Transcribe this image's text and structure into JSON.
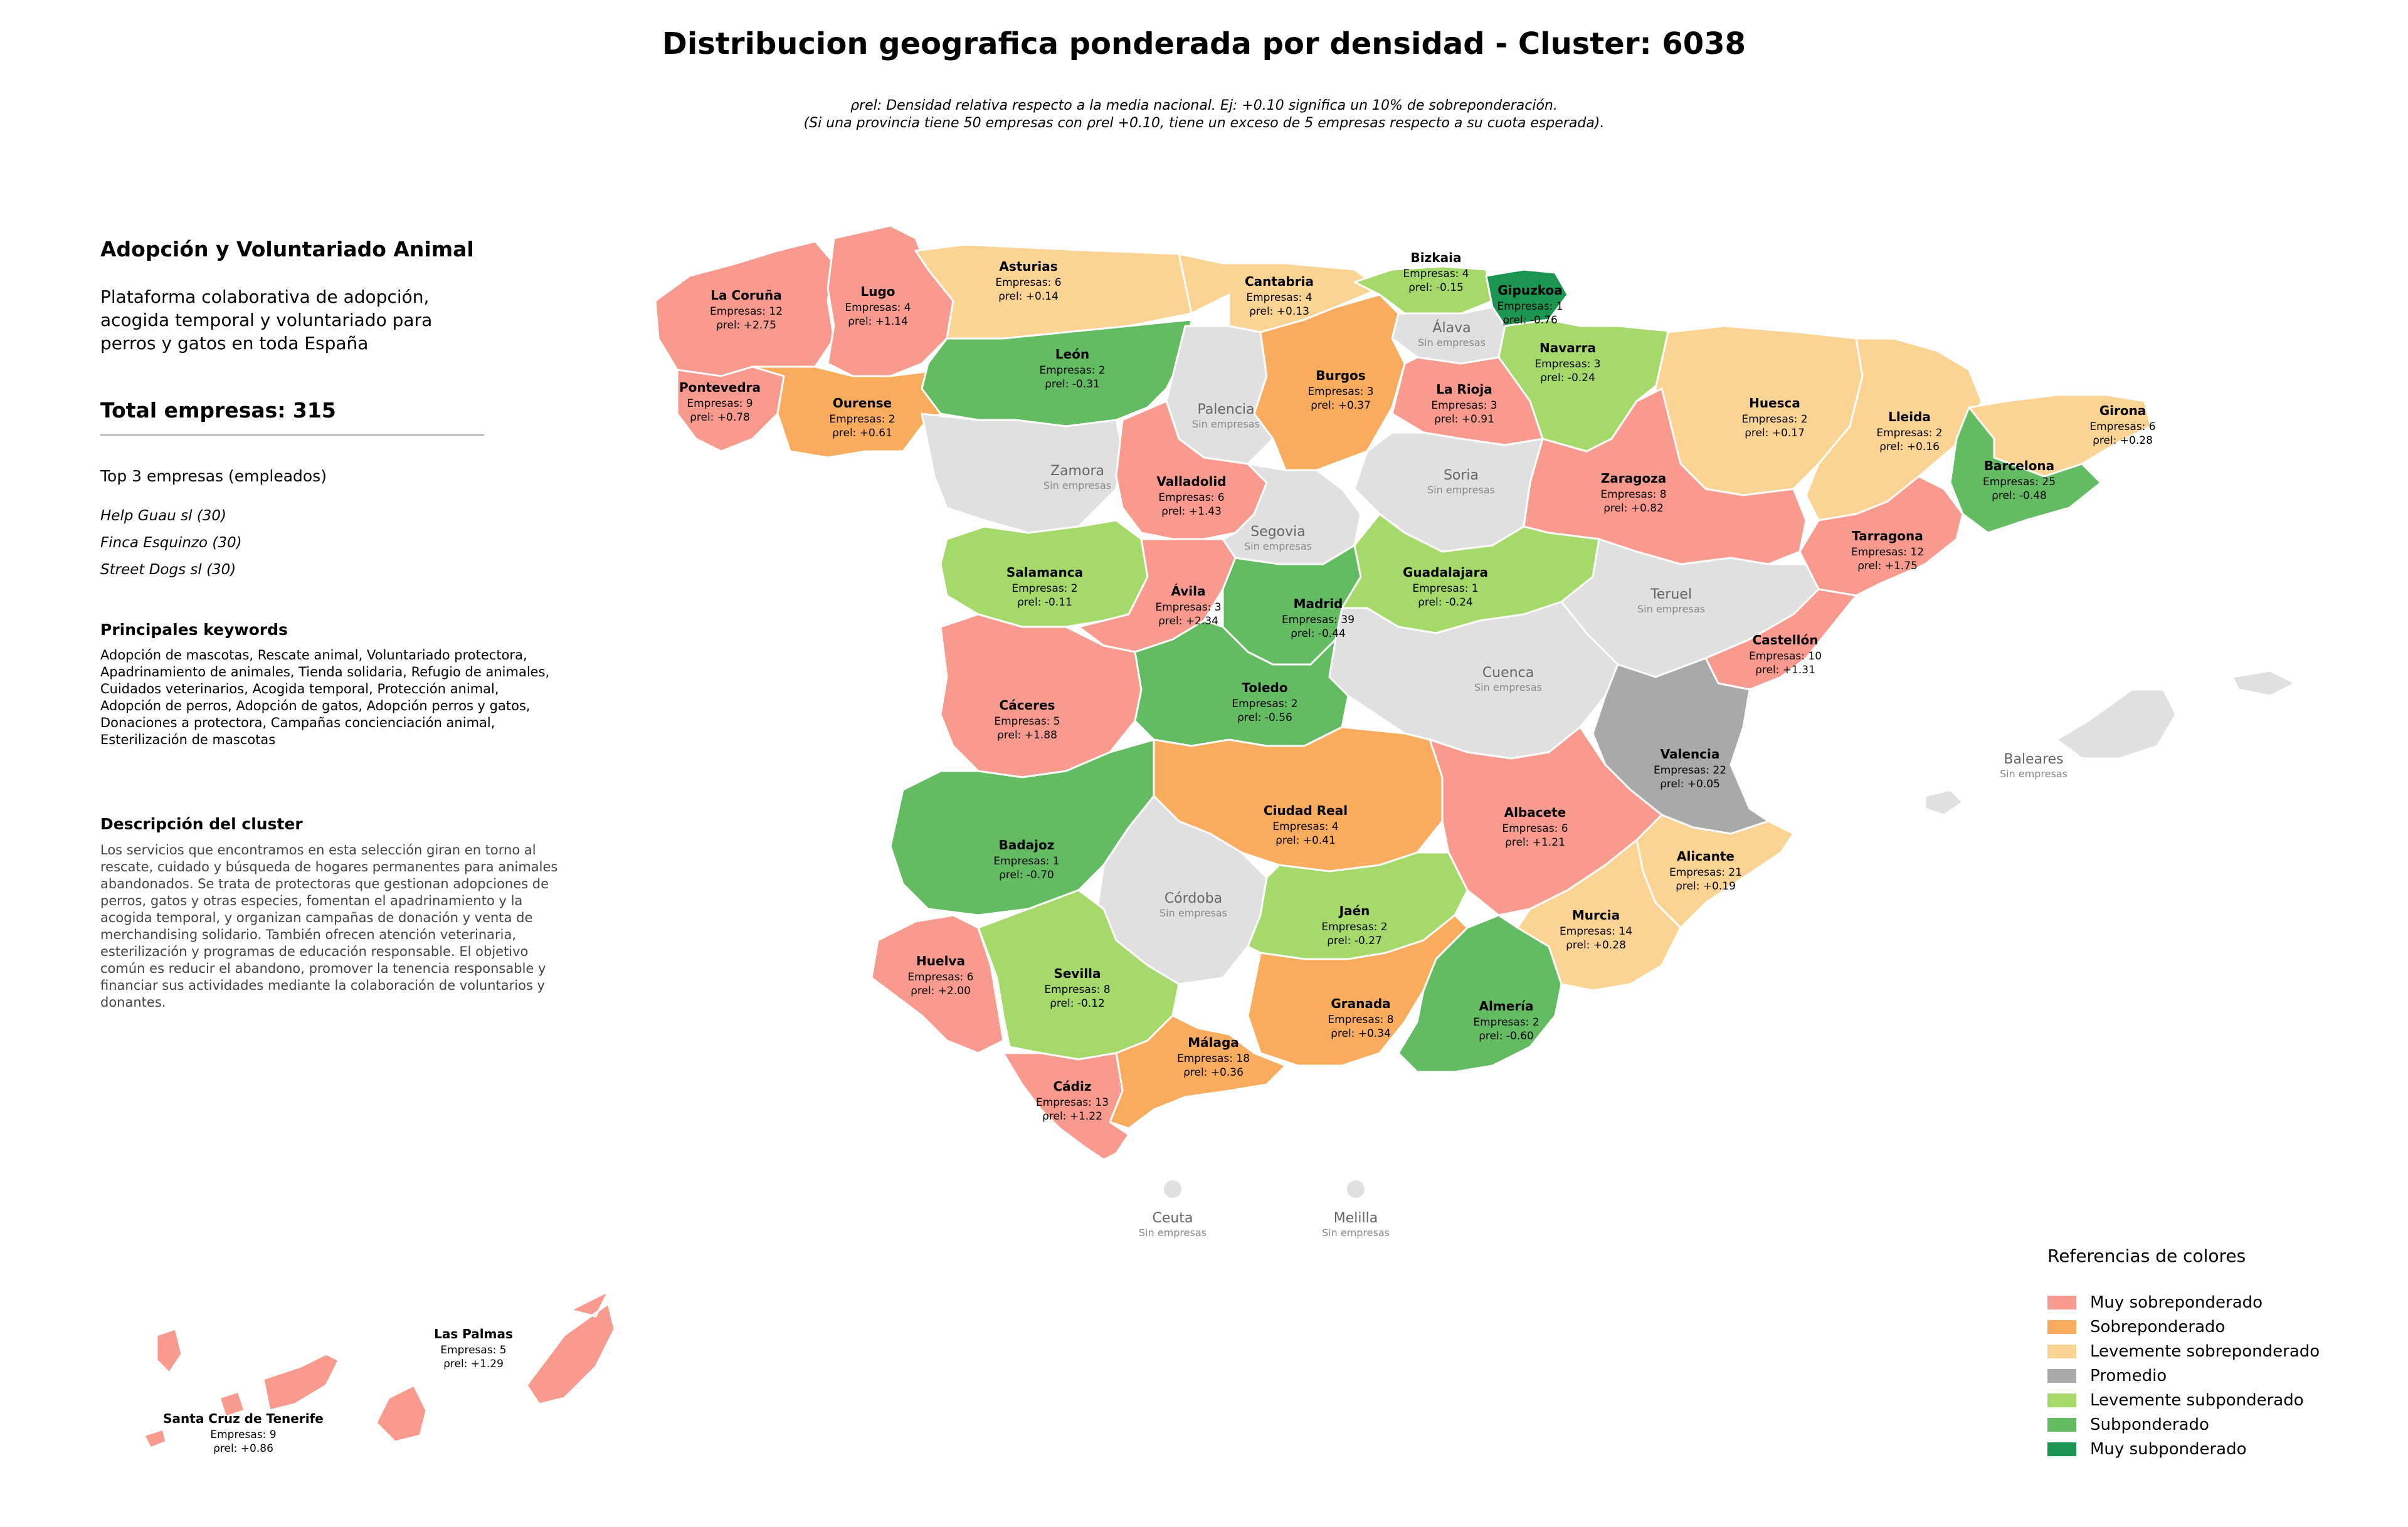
{
  "title": "Distribucion geografica ponderada por densidad - Cluster: 6038",
  "subtitle_line1": "ρrel: Densidad relativa respecto a la media nacional. Ej: +0.10 significa un 10% de sobreponderación.",
  "subtitle_line2": "(Si una provincia tiene 50 empresas con ρrel +0.10, tiene un exceso de 5 empresas respecto a su cuota esperada).",
  "sidebar": {
    "cluster_title": "Adopción y Voluntariado Animal",
    "cluster_description": "Plataforma colaborativa de adopción, acogida temporal y voluntariado para perros y gatos en toda España",
    "total_label": "Total empresas: 315",
    "top_heading": "Top 3 empresas (empleados)",
    "top_companies": [
      "Help Guau sl (30)",
      "Finca Esquinzo (30)",
      "Street Dogs sl (30)"
    ],
    "keywords_heading": "Principales keywords",
    "keywords": "Adopción de mascotas, Rescate animal, Voluntariado protectora, Apadrinamiento de animales, Tienda solidaria, Refugio de animales, Cuidados veterinarios, Acogida temporal, Protección animal, Adopción de perros, Adopción de gatos, Adopción perros y gatos, Donaciones a protectora, Campañas concienciación animal, Esterilización de mascotas",
    "description_heading": "Descripción del cluster",
    "description_body": "Los servicios que encontramos en esta selección giran en torno al rescate, cuidado y búsqueda de hogares permanentes para animales abandonados. Se trata de protectoras que gestionan adopciones de perros, gatos y otras especies, fomentan el apadrinamiento y la acogida temporal, y organizan campañas de donación y venta de merchandising solidario. También ofrecen atención veterinaria, esterilización y programas de educación responsable. El objetivo común es reducir el abandono, promover la tenencia responsable y financiar sus actividades mediante la colaboración de voluntarios y donantes."
  },
  "legend": {
    "title": "Referencias de colores",
    "items": [
      {
        "label": "Muy sobreponderado",
        "color": "#f99a8f"
      },
      {
        "label": "Sobreponderado",
        "color": "#f9ac5e"
      },
      {
        "label": "Levemente sobreponderado",
        "color": "#fbd393"
      },
      {
        "label": "Promedio",
        "color": "#a9a9a9"
      },
      {
        "label": "Levemente subponderado",
        "color": "#a5d96a"
      },
      {
        "label": "Subponderado",
        "color": "#63bb62"
      },
      {
        "label": "Muy subponderado",
        "color": "#1a9650"
      }
    ]
  },
  "no_data_color": "#e0e0e0",
  "no_data_label": "Sin empresas",
  "provinces": [
    {
      "name": "La Coruña",
      "empresas": "Empresas: 12",
      "rho": "ρrel: +2.75",
      "category": "Muy sobreponderado"
    },
    {
      "name": "Lugo",
      "empresas": "Empresas: 4",
      "rho": "ρrel: +1.14",
      "category": "Muy sobreponderado"
    },
    {
      "name": "Asturias",
      "empresas": "Empresas: 6",
      "rho": "ρrel: +0.14",
      "category": "Levemente sobreponderado"
    },
    {
      "name": "Cantabria",
      "empresas": "Empresas: 4",
      "rho": "ρrel: +0.13",
      "category": "Levemente sobreponderado"
    },
    {
      "name": "Bizkaia",
      "empresas": "Empresas: 4",
      "rho": "ρrel: -0.15",
      "category": "Levemente subponderado"
    },
    {
      "name": "Gipuzkoa",
      "empresas": "Empresas: 1",
      "rho": "ρrel: -0.76",
      "category": "Muy subponderado"
    },
    {
      "name": "Álava",
      "empresas": "",
      "rho": "",
      "category": "none"
    },
    {
      "name": "Navarra",
      "empresas": "Empresas: 3",
      "rho": "ρrel: -0.24",
      "category": "Levemente subponderado"
    },
    {
      "name": "Pontevedra",
      "empresas": "Empresas: 9",
      "rho": "ρrel: +0.78",
      "category": "Muy sobreponderado"
    },
    {
      "name": "Ourense",
      "empresas": "Empresas: 2",
      "rho": "ρrel: +0.61",
      "category": "Sobreponderado"
    },
    {
      "name": "León",
      "empresas": "Empresas: 2",
      "rho": "ρrel: -0.31",
      "category": "Subponderado"
    },
    {
      "name": "Palencia",
      "empresas": "",
      "rho": "",
      "category": "none"
    },
    {
      "name": "Burgos",
      "empresas": "Empresas: 3",
      "rho": "ρrel: +0.37",
      "category": "Sobreponderado"
    },
    {
      "name": "La Rioja",
      "empresas": "Empresas: 3",
      "rho": "ρrel: +0.91",
      "category": "Muy sobreponderado"
    },
    {
      "name": "Huesca",
      "empresas": "Empresas: 2",
      "rho": "ρrel: +0.17",
      "category": "Levemente sobreponderado"
    },
    {
      "name": "Lleida",
      "empresas": "Empresas: 2",
      "rho": "ρrel: +0.16",
      "category": "Levemente sobreponderado"
    },
    {
      "name": "Girona",
      "empresas": "Empresas: 6",
      "rho": "ρrel: +0.28",
      "category": "Levemente sobreponderado"
    },
    {
      "name": "Barcelona",
      "empresas": "Empresas: 25",
      "rho": "ρrel: -0.48",
      "category": "Subponderado"
    },
    {
      "name": "Zamora",
      "empresas": "",
      "rho": "",
      "category": "none"
    },
    {
      "name": "Valladolid",
      "empresas": "Empresas: 6",
      "rho": "ρrel: +1.43",
      "category": "Muy sobreponderado"
    },
    {
      "name": "Soria",
      "empresas": "",
      "rho": "",
      "category": "none"
    },
    {
      "name": "Zaragoza",
      "empresas": "Empresas: 8",
      "rho": "ρrel: +0.82",
      "category": "Muy sobreponderado"
    },
    {
      "name": "Segovia",
      "empresas": "",
      "rho": "",
      "category": "none"
    },
    {
      "name": "Tarragona",
      "empresas": "Empresas: 12",
      "rho": "ρrel: +1.75",
      "category": "Muy sobreponderado"
    },
    {
      "name": "Salamanca",
      "empresas": "Empresas: 2",
      "rho": "ρrel: -0.11",
      "category": "Levemente subponderado"
    },
    {
      "name": "Ávila",
      "empresas": "Empresas: 3",
      "rho": "ρrel: +2.34",
      "category": "Muy sobreponderado"
    },
    {
      "name": "Madrid",
      "empresas": "Empresas: 39",
      "rho": "ρrel: -0.44",
      "category": "Subponderado"
    },
    {
      "name": "Guadalajara",
      "empresas": "Empresas: 1",
      "rho": "ρrel: -0.24",
      "category": "Levemente subponderado"
    },
    {
      "name": "Teruel",
      "empresas": "",
      "rho": "",
      "category": "none"
    },
    {
      "name": "Castellón",
      "empresas": "Empresas: 10",
      "rho": "ρrel: +1.31",
      "category": "Muy sobreponderado"
    },
    {
      "name": "Cáceres",
      "empresas": "Empresas: 5",
      "rho": "ρrel: +1.88",
      "category": "Muy sobreponderado"
    },
    {
      "name": "Toledo",
      "empresas": "Empresas: 2",
      "rho": "ρrel: -0.56",
      "category": "Subponderado"
    },
    {
      "name": "Cuenca",
      "empresas": "",
      "rho": "",
      "category": "none"
    },
    {
      "name": "Valencia",
      "empresas": "Empresas: 22",
      "rho": "ρrel: +0.05",
      "category": "Promedio"
    },
    {
      "name": "Ciudad Real",
      "empresas": "Empresas: 4",
      "rho": "ρrel: +0.41",
      "category": "Sobreponderado"
    },
    {
      "name": "Albacete",
      "empresas": "Empresas: 6",
      "rho": "ρrel: +1.21",
      "category": "Muy sobreponderado"
    },
    {
      "name": "Badajoz",
      "empresas": "Empresas: 1",
      "rho": "ρrel: -0.70",
      "category": "Subponderado"
    },
    {
      "name": "Alicante",
      "empresas": "Empresas: 21",
      "rho": "ρrel: +0.19",
      "category": "Levemente sobreponderado"
    },
    {
      "name": "Córdoba",
      "empresas": "",
      "rho": "",
      "category": "none"
    },
    {
      "name": "Jaén",
      "empresas": "Empresas: 2",
      "rho": "ρrel: -0.27",
      "category": "Levemente subponderado"
    },
    {
      "name": "Murcia",
      "empresas": "Empresas: 14",
      "rho": "ρrel: +0.28",
      "category": "Levemente sobreponderado"
    },
    {
      "name": "Huelva",
      "empresas": "Empresas: 6",
      "rho": "ρrel: +2.00",
      "category": "Muy sobreponderado"
    },
    {
      "name": "Sevilla",
      "empresas": "Empresas: 8",
      "rho": "ρrel: -0.12",
      "category": "Levemente subponderado"
    },
    {
      "name": "Granada",
      "empresas": "Empresas: 8",
      "rho": "ρrel: +0.34",
      "category": "Sobreponderado"
    },
    {
      "name": "Almería",
      "empresas": "Empresas: 2",
      "rho": "ρrel: -0.60",
      "category": "Subponderado"
    },
    {
      "name": "Málaga",
      "empresas": "Empresas: 18",
      "rho": "ρrel: +0.36",
      "category": "Sobreponderado"
    },
    {
      "name": "Cádiz",
      "empresas": "Empresas: 13",
      "rho": "ρrel: +1.22",
      "category": "Muy sobreponderado"
    },
    {
      "name": "Baleares",
      "empresas": "",
      "rho": "",
      "category": "none"
    },
    {
      "name": "Ceuta",
      "empresas": "",
      "rho": "",
      "category": "none"
    },
    {
      "name": "Melilla",
      "empresas": "",
      "rho": "",
      "category": "none"
    },
    {
      "name": "Las Palmas",
      "empresas": "Empresas: 5",
      "rho": "ρrel: +1.29",
      "category": "Muy sobreponderado"
    },
    {
      "name": "Santa Cruz de Tenerife",
      "empresas": "Empresas: 9",
      "rho": "ρrel: +0.86",
      "category": "Muy sobreponderado"
    }
  ]
}
